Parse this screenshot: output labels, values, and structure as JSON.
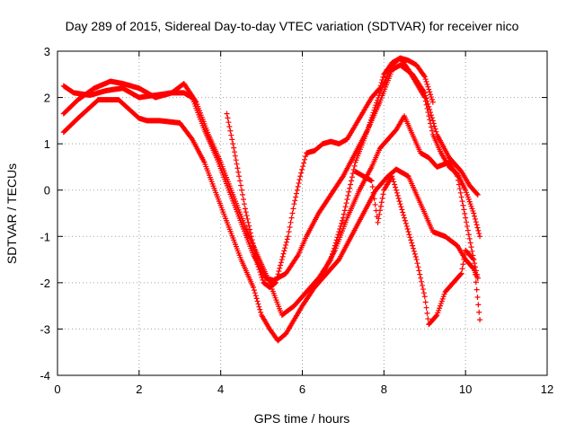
{
  "chart_data": {
    "type": "scatter",
    "title": "Day 289 of 2015, Sidereal Day-to-day VTEC variation (SDTVAR) for receiver nico",
    "xlabel": "GPS time / hours",
    "ylabel": "SDTVAR / TECUs",
    "xlim": [
      0,
      12
    ],
    "ylim": [
      -4,
      3
    ],
    "xticks": [
      0,
      2,
      4,
      6,
      8,
      10,
      12
    ],
    "yticks": [
      -4,
      -3,
      -2,
      -1,
      0,
      1,
      2,
      3
    ],
    "grid": true,
    "marker": "plus",
    "color": "#ff0000",
    "series": [
      {
        "x": [
          0.15,
          0.5,
          1.0,
          1.5,
          2.0,
          2.2,
          2.5,
          3.0,
          3.3,
          3.6,
          3.9,
          4.2,
          4.5,
          4.8,
          5.0,
          5.2,
          5.4,
          5.6,
          5.8,
          6.0,
          6.3,
          6.6,
          6.9,
          7.2,
          7.5,
          7.8,
          8.1,
          8.3,
          8.6,
          8.9,
          9.2,
          9.5,
          9.8,
          10.0,
          10.2,
          10.3
        ],
        "y": [
          1.25,
          1.55,
          1.95,
          1.95,
          1.55,
          1.5,
          1.5,
          1.45,
          1.1,
          0.6,
          -0.1,
          -0.8,
          -1.5,
          -2.1,
          -2.7,
          -3.0,
          -3.25,
          -3.1,
          -2.8,
          -2.5,
          -2.1,
          -1.8,
          -1.5,
          -1.0,
          -0.5,
          0.0,
          0.3,
          0.45,
          0.3,
          -0.3,
          -0.9,
          -1.0,
          -1.2,
          -1.5,
          -1.7,
          -1.9
        ]
      },
      {
        "x": [
          0.15,
          0.4,
          0.8,
          1.2,
          1.6,
          2.0,
          2.4,
          2.8,
          3.1,
          3.4,
          3.7,
          4.0,
          4.3,
          4.6,
          4.9,
          5.2,
          5.5,
          5.8,
          6.1,
          6.4,
          6.7,
          7.0,
          7.3,
          7.6,
          7.9,
          8.2,
          8.4,
          8.6,
          8.8,
          9.0,
          9.2
        ],
        "y": [
          2.25,
          2.1,
          2.05,
          2.15,
          2.2,
          2.0,
          2.05,
          2.1,
          2.3,
          1.9,
          1.2,
          0.6,
          -0.1,
          -0.8,
          -1.4,
          -2.0,
          -2.7,
          -2.5,
          -2.2,
          -1.9,
          -1.5,
          -0.6,
          0.6,
          1.3,
          2.1,
          2.7,
          2.85,
          2.8,
          2.7,
          2.45,
          1.9
        ]
      },
      {
        "x": [
          0.15,
          0.5,
          0.9,
          1.3,
          1.6,
          2.0,
          2.4,
          2.8,
          3.1,
          3.3,
          3.6,
          3.9,
          4.2,
          4.5,
          4.8,
          5.1,
          5.3,
          5.6,
          5.9,
          6.1,
          6.4,
          6.7,
          7.0,
          7.3,
          7.6,
          7.9,
          8.2,
          8.4,
          8.7,
          9.0,
          9.3,
          9.6,
          9.9,
          10.1,
          10.3
        ],
        "y": [
          1.65,
          1.95,
          2.2,
          2.35,
          2.3,
          2.2,
          2.0,
          2.1,
          2.1,
          2.0,
          1.3,
          0.7,
          0.0,
          -0.7,
          -1.4,
          -1.9,
          -1.95,
          -1.8,
          -1.4,
          -1.0,
          -0.5,
          -0.1,
          0.3,
          0.8,
          1.3,
          1.9,
          2.6,
          2.7,
          2.5,
          2.1,
          1.2,
          0.7,
          0.4,
          0.1,
          -0.1
        ]
      },
      {
        "x": [
          4.15,
          4.3,
          4.45,
          4.6,
          4.75,
          4.9,
          5.05,
          5.2,
          5.35,
          5.5,
          5.65,
          5.8,
          5.95,
          6.1,
          6.3,
          6.5,
          6.7,
          6.9,
          7.1,
          7.3,
          7.5,
          7.7,
          7.9,
          8.0,
          8.2,
          8.4,
          8.6,
          8.8,
          9.0,
          9.2,
          9.4,
          9.6,
          9.8,
          10.0,
          10.2,
          10.35
        ],
        "y": [
          1.65,
          1.0,
          0.3,
          -0.4,
          -1.0,
          -1.6,
          -2.0,
          -2.1,
          -2.0,
          -1.5,
          -1.0,
          -0.3,
          0.3,
          0.8,
          0.85,
          1.0,
          1.05,
          1.0,
          1.1,
          1.4,
          1.7,
          2.0,
          2.2,
          2.5,
          2.75,
          2.85,
          2.6,
          2.3,
          2.0,
          1.2,
          0.8,
          0.5,
          0.35,
          0.0,
          -0.5,
          -1.0
        ]
      },
      {
        "x": [
          6.2,
          6.5,
          6.8,
          7.1,
          7.4,
          7.7,
          7.9,
          8.1,
          8.3,
          8.5,
          8.7,
          8.9,
          9.1,
          9.3,
          9.6,
          9.8,
          10.0,
          10.2,
          10.3
        ],
        "y": [
          -2.2,
          -1.8,
          -1.3,
          -0.6,
          0.0,
          0.5,
          0.9,
          1.1,
          1.3,
          1.6,
          1.2,
          0.8,
          0.7,
          0.5,
          0.6,
          0.3,
          -0.6,
          -1.5,
          -1.9
        ]
      },
      {
        "x": [
          7.3,
          7.5,
          7.7,
          7.85,
          8.0,
          8.2,
          8.4,
          8.6,
          8.8,
          9.0,
          9.1,
          9.3,
          9.5,
          9.7,
          9.9,
          10.0,
          10.2,
          10.35
        ],
        "y": [
          0.4,
          0.3,
          0.2,
          -0.7,
          0.0,
          0.3,
          -0.3,
          -0.9,
          -1.5,
          -2.3,
          -2.9,
          -2.7,
          -2.2,
          -2.0,
          -1.8,
          -1.3,
          -1.5,
          -2.8
        ]
      }
    ]
  }
}
